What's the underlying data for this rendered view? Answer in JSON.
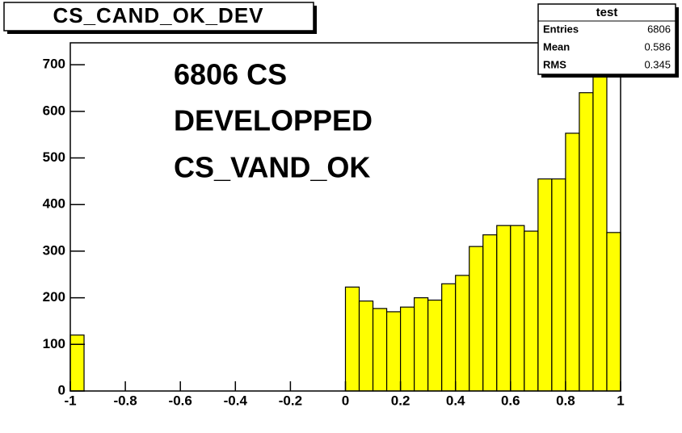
{
  "chart_data": {
    "type": "histogram",
    "title": "CS_CAND_OK_DEV",
    "annotations": [
      "6806 CS",
      "DEVELOPPED",
      "CS_VAND_OK"
    ],
    "stats": {
      "title": "test",
      "rows": [
        {
          "label": "Entries",
          "value": 6806
        },
        {
          "label": "Mean",
          "value": 0.586
        },
        {
          "label": "RMS",
          "value": 0.345
        }
      ]
    },
    "bins": [
      -1,
      -0.95,
      -0.9,
      -0.85,
      -0.8,
      -0.75,
      -0.7,
      -0.65,
      -0.6,
      -0.55,
      -0.5,
      -0.45,
      -0.4,
      -0.35,
      -0.3,
      -0.25,
      -0.2,
      -0.15,
      -0.1,
      -0.05,
      0,
      0.05,
      0.1,
      0.15,
      0.2,
      0.25,
      0.3,
      0.35,
      0.4,
      0.45,
      0.5,
      0.55,
      0.6,
      0.65,
      0.7,
      0.75,
      0.8,
      0.85,
      0.9,
      0.95,
      1
    ],
    "counts": [
      120,
      0,
      0,
      0,
      0,
      0,
      0,
      0,
      0,
      0,
      0,
      0,
      0,
      0,
      0,
      0,
      0,
      0,
      0,
      0,
      223,
      193,
      177,
      170,
      180,
      200,
      195,
      230,
      248,
      310,
      335,
      355,
      355,
      343,
      455,
      455,
      553,
      640,
      720,
      340
    ],
    "color": "#ffff00",
    "xlim": [
      -1,
      1
    ],
    "xticks": [
      -1,
      -0.8,
      -0.6,
      -0.4,
      -0.2,
      0,
      0.2,
      0.4,
      0.6,
      0.8,
      1
    ],
    "ylim": [
      0,
      747
    ],
    "yticks": [
      0,
      100,
      200,
      300,
      400,
      500,
      600,
      700
    ]
  }
}
